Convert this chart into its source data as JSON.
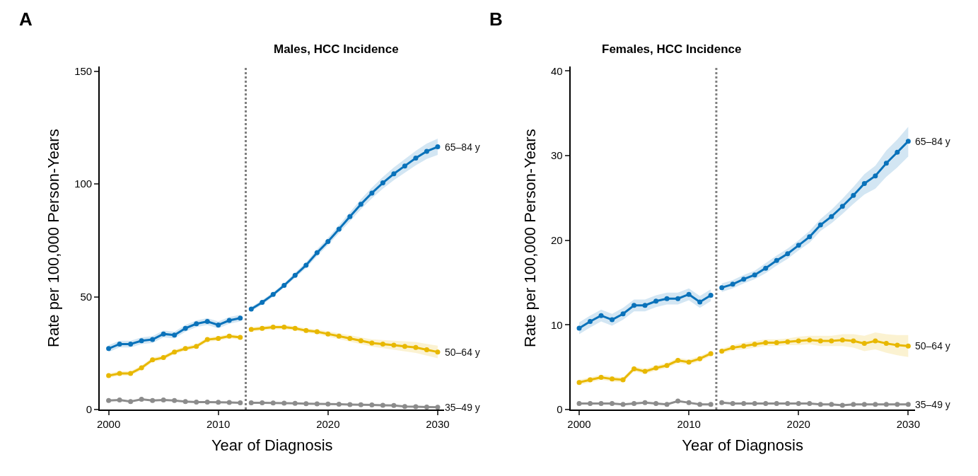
{
  "chart_data": [
    {
      "type": "line",
      "title": "Males, HCC Incidence",
      "xlabel": "Year of Diagnosis",
      "ylabel": "Rate per 100,000 Person-Years",
      "annotations": [
        "A"
      ],
      "xlim": [
        1999.2,
        2030.6
      ],
      "xticks": [
        2000,
        2010,
        2020,
        2030
      ],
      "ylim": [
        0,
        152
      ],
      "yticks": [
        0,
        50,
        100,
        150
      ],
      "legend": false,
      "marker": "circle",
      "line_style": "solid",
      "ref_lines": [
        {
          "axis": "x",
          "value": 2012.5,
          "label": null,
          "color": "#808080",
          "line_style": "dotted"
        }
      ],
      "series": [
        {
          "color": "#0a72ba",
          "x": [
            2000,
            2001,
            2002,
            2003,
            2004,
            2005,
            2006,
            2007,
            2008,
            2009,
            2010,
            2011,
            2012
          ],
          "values": [
            27,
            29,
            29,
            30.5,
            31,
            33.5,
            33,
            36,
            38,
            39,
            37.5,
            39.5,
            40.5
          ],
          "lower": [
            25.5,
            27.5,
            27.5,
            29,
            29.5,
            32,
            31.5,
            34.5,
            36.5,
            37.5,
            36,
            38,
            39
          ],
          "upper": [
            28.5,
            30.5,
            30.5,
            32,
            32.5,
            35,
            34.5,
            37.5,
            39.5,
            40.5,
            39,
            41,
            42
          ]
        },
        {
          "name": "65–84 y",
          "color": "#0a72ba",
          "x": [
            2013,
            2014,
            2015,
            2016,
            2017,
            2018,
            2019,
            2020,
            2021,
            2022,
            2023,
            2024,
            2025,
            2026,
            2027,
            2028,
            2029,
            2030
          ],
          "values": [
            44.5,
            47.5,
            51,
            55,
            59.5,
            64,
            69.5,
            74.5,
            80,
            85.5,
            91,
            96,
            100.5,
            104.5,
            108,
            111.5,
            114.5,
            116.5
          ],
          "lower": [
            43.5,
            46.5,
            50,
            54,
            58.3,
            62.7,
            68,
            72.9,
            78.2,
            83.5,
            88.8,
            93.6,
            97.9,
            101.7,
            105,
            108.3,
            111.1,
            112.9
          ],
          "upper": [
            45.5,
            48.5,
            52,
            56,
            60.7,
            65.3,
            71,
            76.1,
            81.8,
            87.5,
            93.2,
            98.4,
            103.1,
            107.3,
            111,
            114.7,
            117.9,
            120.1
          ]
        },
        {
          "color": "#e8b800",
          "x": [
            2000,
            2001,
            2002,
            2003,
            2004,
            2005,
            2006,
            2007,
            2008,
            2009,
            2010,
            2011,
            2012
          ],
          "values": [
            15,
            16,
            16,
            18.5,
            22,
            23,
            25.5,
            27,
            28,
            31,
            31.5,
            32.5,
            32
          ],
          "lower": [
            14,
            15,
            15,
            17.5,
            21,
            22,
            24.5,
            26,
            27,
            30,
            30.5,
            31.5,
            31
          ],
          "upper": [
            16,
            17,
            17,
            19.5,
            23,
            24,
            26.5,
            28,
            29,
            32,
            32.5,
            33.5,
            33
          ]
        },
        {
          "name": "50–64 y",
          "color": "#e8b800",
          "x": [
            2013,
            2014,
            2015,
            2016,
            2017,
            2018,
            2019,
            2020,
            2021,
            2022,
            2023,
            2024,
            2025,
            2026,
            2027,
            2028,
            2029,
            2030
          ],
          "values": [
            35.5,
            36,
            36.5,
            36.5,
            36,
            35,
            34.5,
            33.5,
            32.5,
            31.5,
            30.5,
            29.5,
            29,
            28.5,
            28,
            27.5,
            26.5,
            25.5
          ],
          "lower": [
            34.5,
            35,
            35.5,
            35.5,
            35,
            34,
            33.5,
            32.3,
            31.3,
            30.1,
            29,
            27.9,
            27.2,
            26.5,
            25.8,
            25.1,
            23.9,
            22.7
          ],
          "upper": [
            36.5,
            37,
            37.5,
            37.5,
            37,
            36,
            35.5,
            34.7,
            33.7,
            32.9,
            32,
            31.1,
            30.8,
            30.5,
            30.2,
            29.9,
            29.1,
            28.3
          ]
        },
        {
          "color": "#8c8c8c",
          "x": [
            2000,
            2001,
            2002,
            2003,
            2004,
            2005,
            2006,
            2007,
            2008,
            2009,
            2010,
            2011,
            2012
          ],
          "values": [
            4,
            4.2,
            3.5,
            4.5,
            4,
            4.2,
            4,
            3.5,
            3.3,
            3.3,
            3.2,
            3.1,
            3
          ]
        },
        {
          "name": "35–49 y",
          "color": "#8c8c8c",
          "x": [
            2013,
            2014,
            2015,
            2016,
            2017,
            2018,
            2019,
            2020,
            2021,
            2022,
            2023,
            2024,
            2025,
            2026,
            2027,
            2028,
            2029,
            2030
          ],
          "values": [
            3,
            3,
            2.9,
            2.8,
            2.7,
            2.6,
            2.5,
            2.4,
            2.3,
            2.2,
            2.1,
            2,
            1.9,
            1.8,
            1.3,
            1.2,
            1.1,
            1.0
          ]
        }
      ]
    },
    {
      "type": "line",
      "title": "Females, HCC Incidence",
      "xlabel": "Year of Diagnosis",
      "ylabel": "Rate per 100,000 Person-Years",
      "annotations": [
        "B"
      ],
      "xlim": [
        1999.2,
        2030.6
      ],
      "xticks": [
        2000,
        2010,
        2020,
        2030
      ],
      "ylim": [
        0,
        40.5
      ],
      "yticks": [
        0,
        10,
        20,
        30,
        40
      ],
      "legend": false,
      "marker": "circle",
      "line_style": "solid",
      "ref_lines": [
        {
          "axis": "x",
          "value": 2012.5,
          "label": null,
          "color": "#808080",
          "line_style": "dotted"
        }
      ],
      "series": [
        {
          "color": "#0a72ba",
          "x": [
            2000,
            2001,
            2002,
            2003,
            2004,
            2005,
            2006,
            2007,
            2008,
            2009,
            2010,
            2011,
            2012
          ],
          "values": [
            9.6,
            10.4,
            11.1,
            10.6,
            11.3,
            12.3,
            12.3,
            12.8,
            13.1,
            13.1,
            13.6,
            12.7,
            13.5
          ],
          "lower": [
            8.9,
            9.7,
            10.4,
            9.9,
            10.6,
            11.6,
            11.6,
            12.1,
            12.4,
            12.4,
            12.9,
            12,
            12.8
          ],
          "upper": [
            10.3,
            11.1,
            11.8,
            11.3,
            12,
            13,
            13,
            13.5,
            13.8,
            13.8,
            14.3,
            13.4,
            14.2
          ]
        },
        {
          "name": "65–84 y",
          "color": "#0a72ba",
          "x": [
            2013,
            2014,
            2015,
            2016,
            2017,
            2018,
            2019,
            2020,
            2021,
            2022,
            2023,
            2024,
            2025,
            2026,
            2027,
            2028,
            2029,
            2030
          ],
          "values": [
            14.4,
            14.8,
            15.4,
            15.9,
            16.7,
            17.6,
            18.4,
            19.4,
            20.4,
            21.8,
            22.8,
            24.0,
            25.3,
            26.7,
            27.6,
            29.1,
            30.4,
            31.7
          ],
          "lower": [
            13.9,
            14.3,
            14.9,
            15.4,
            16.1,
            17,
            17.8,
            18.8,
            19.7,
            21.1,
            22,
            23.1,
            24.3,
            25.4,
            26.1,
            27.5,
            28.6,
            29.9
          ],
          "upper": [
            14.9,
            15.3,
            15.9,
            16.4,
            17.3,
            18.2,
            19,
            20,
            21.1,
            22.5,
            23.6,
            24.9,
            26.3,
            27.8,
            28.8,
            30.6,
            31.9,
            33.4
          ]
        },
        {
          "color": "#e8b800",
          "x": [
            2000,
            2001,
            2002,
            2003,
            2004,
            2005,
            2006,
            2007,
            2008,
            2009,
            2010,
            2011,
            2012
          ],
          "values": [
            3.2,
            3.5,
            3.8,
            3.6,
            3.5,
            4.8,
            4.5,
            4.9,
            5.2,
            5.8,
            5.6,
            6.0,
            6.6
          ],
          "lower": [
            2.9,
            3.2,
            3.5,
            3.3,
            3.2,
            4.5,
            4.2,
            4.6,
            4.9,
            5.5,
            5.3,
            5.7,
            6.3
          ],
          "upper": [
            3.5,
            3.8,
            4.1,
            3.9,
            3.8,
            5.1,
            4.8,
            5.2,
            5.5,
            6.1,
            5.9,
            6.3,
            6.9
          ]
        },
        {
          "name": "50–64 y",
          "color": "#e8b800",
          "x": [
            2013,
            2014,
            2015,
            2016,
            2017,
            2018,
            2019,
            2020,
            2021,
            2022,
            2023,
            2024,
            2025,
            2026,
            2027,
            2028,
            2029,
            2030
          ],
          "values": [
            6.9,
            7.3,
            7.5,
            7.7,
            7.9,
            7.9,
            8.0,
            8.1,
            8.2,
            8.1,
            8.1,
            8.2,
            8.1,
            7.8,
            8.1,
            7.8,
            7.6,
            7.5
          ],
          "lower": [
            6.6,
            7,
            7.1,
            7.3,
            7.5,
            7.5,
            7.6,
            7.6,
            7.7,
            7.5,
            7.5,
            7.5,
            7.3,
            6.9,
            7.1,
            6.7,
            6.4,
            6.2
          ],
          "upper": [
            7.2,
            7.6,
            7.9,
            8.1,
            8.3,
            8.3,
            8.4,
            8.6,
            8.7,
            8.7,
            8.7,
            8.9,
            8.9,
            8.7,
            9.1,
            8.9,
            8.8,
            8.8
          ]
        },
        {
          "color": "#8c8c8c",
          "x": [
            2000,
            2001,
            2002,
            2003,
            2004,
            2005,
            2006,
            2007,
            2008,
            2009,
            2010,
            2011,
            2012
          ],
          "values": [
            0.7,
            0.7,
            0.7,
            0.7,
            0.6,
            0.7,
            0.8,
            0.7,
            0.6,
            1.0,
            0.8,
            0.6,
            0.6
          ]
        },
        {
          "name": "35–49 y",
          "color": "#8c8c8c",
          "x": [
            2013,
            2014,
            2015,
            2016,
            2017,
            2018,
            2019,
            2020,
            2021,
            2022,
            2023,
            2024,
            2025,
            2026,
            2027,
            2028,
            2029,
            2030
          ],
          "values": [
            0.8,
            0.7,
            0.7,
            0.7,
            0.7,
            0.7,
            0.7,
            0.7,
            0.7,
            0.6,
            0.6,
            0.5,
            0.6,
            0.6,
            0.6,
            0.6,
            0.6,
            0.6
          ]
        }
      ]
    }
  ]
}
